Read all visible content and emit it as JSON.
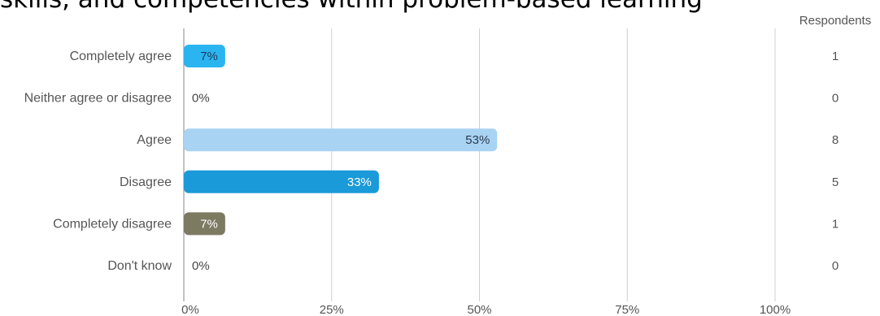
{
  "chart_data": {
    "type": "bar",
    "orientation": "horizontal",
    "title": "skills, and competencies within problem-based learning",
    "categories": [
      "Completely agree",
      "Neither agree or disagree",
      "Agree",
      "Disagree",
      "Completely disagree",
      "Don't know"
    ],
    "values": [
      7,
      0,
      53,
      33,
      7,
      0
    ],
    "value_labels": [
      "7%",
      "0%",
      "53%",
      "33%",
      "7%",
      "0%"
    ],
    "respondents_header": "Respondents",
    "respondents": [
      "1",
      "0",
      "8",
      "5",
      "1",
      "0"
    ],
    "x_ticks": [
      0,
      25,
      50,
      75,
      100
    ],
    "x_tick_labels": [
      "0%",
      "25%",
      "50%",
      "75%",
      "100%"
    ],
    "xlim": [
      0,
      100
    ],
    "grid": true,
    "colors": [
      "#2bb5f0",
      "#cccccc",
      "#a9d3f3",
      "#1a9ad9",
      "#7d7a62",
      "#cccccc"
    ],
    "label_colors": [
      "#1f3a5a",
      "#444444",
      "#2a3a4a",
      "#ffffff",
      "#ffffff",
      "#444444"
    ]
  }
}
